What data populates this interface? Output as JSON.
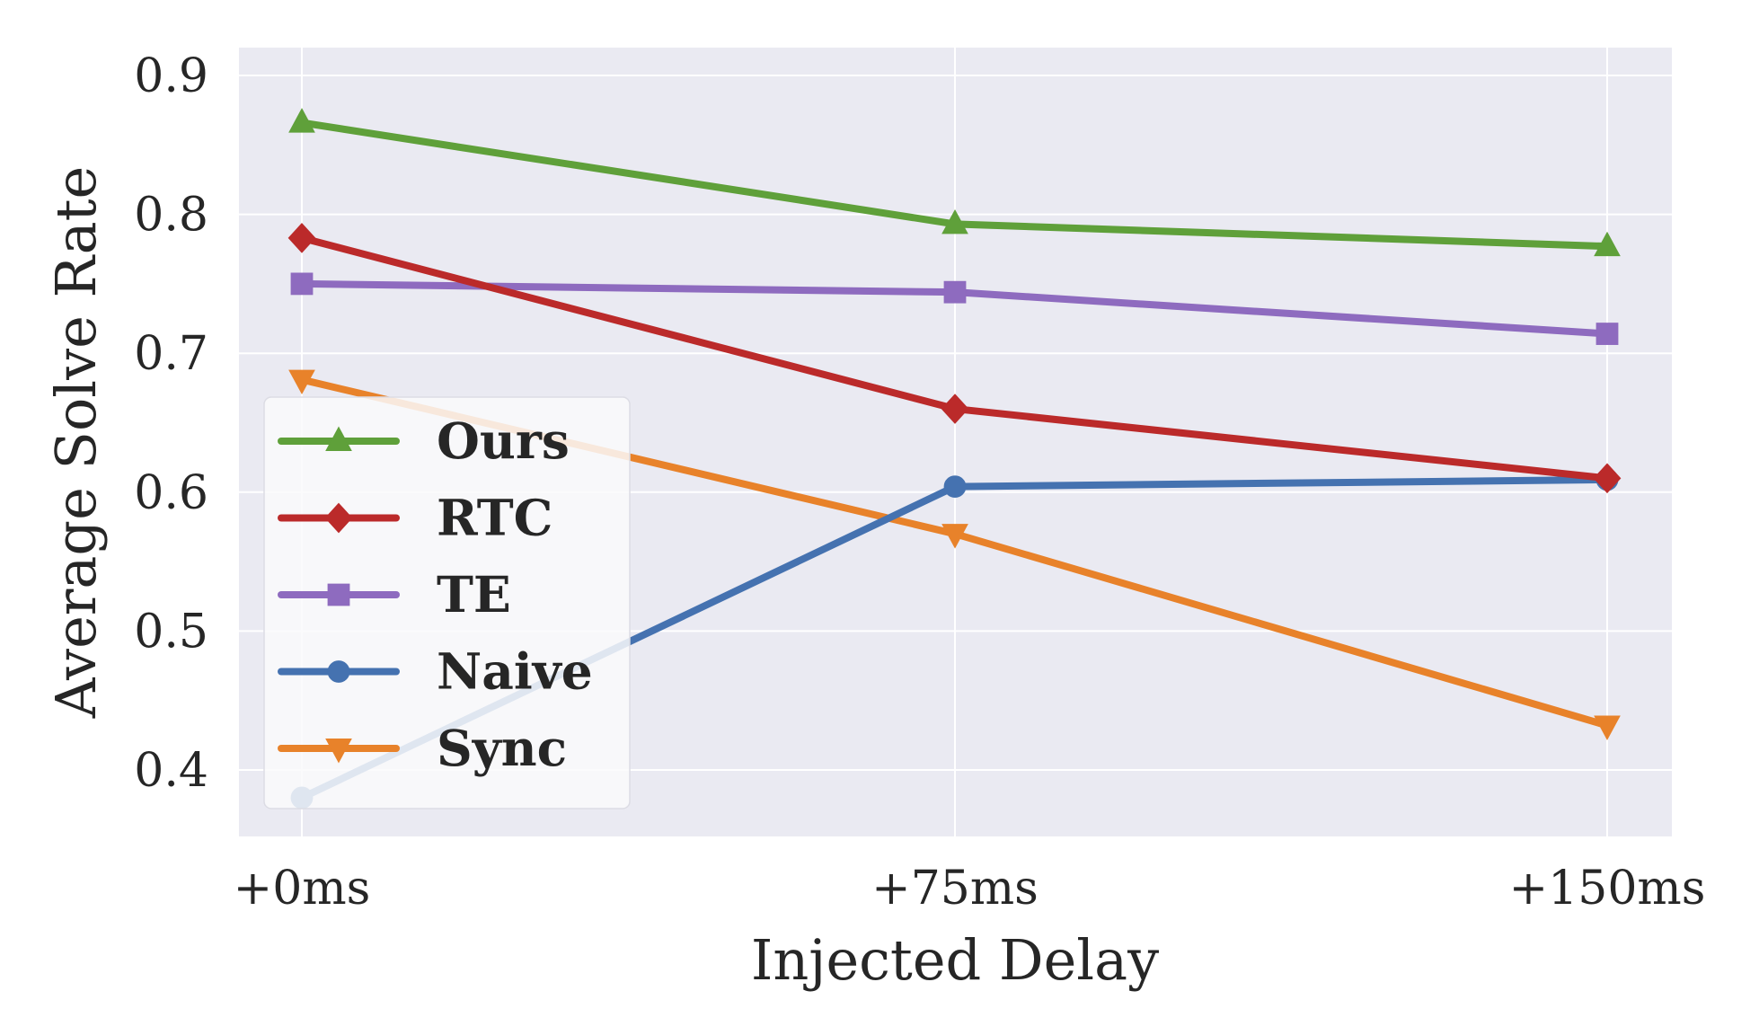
{
  "chart_data": {
    "type": "line",
    "xlabel": "Injected Delay",
    "ylabel": "Average Solve Rate",
    "categories": [
      "+0ms",
      "+75ms",
      "+150ms"
    ],
    "ylim": [
      0.35,
      0.92
    ],
    "yticks": [
      "0.4",
      "0.5",
      "0.6",
      "0.7",
      "0.8",
      "0.9"
    ],
    "grid": true,
    "legend_position": "lower-left",
    "series": [
      {
        "name": "Ours",
        "values": [
          0.866,
          0.793,
          0.777
        ],
        "color": "#5fa03a",
        "marker": "triangle-up"
      },
      {
        "name": "RTC",
        "values": [
          0.783,
          0.66,
          0.61
        ],
        "color": "#bb2a2a",
        "marker": "diamond"
      },
      {
        "name": "TE",
        "values": [
          0.75,
          0.744,
          0.714
        ],
        "color": "#8e6bbf",
        "marker": "square"
      },
      {
        "name": "Naive",
        "values": [
          0.38,
          0.604,
          0.609
        ],
        "color": "#4572b0",
        "marker": "circle"
      },
      {
        "name": "Sync",
        "values": [
          0.681,
          0.57,
          0.432
        ],
        "color": "#e8822a",
        "marker": "triangle-down"
      }
    ]
  }
}
